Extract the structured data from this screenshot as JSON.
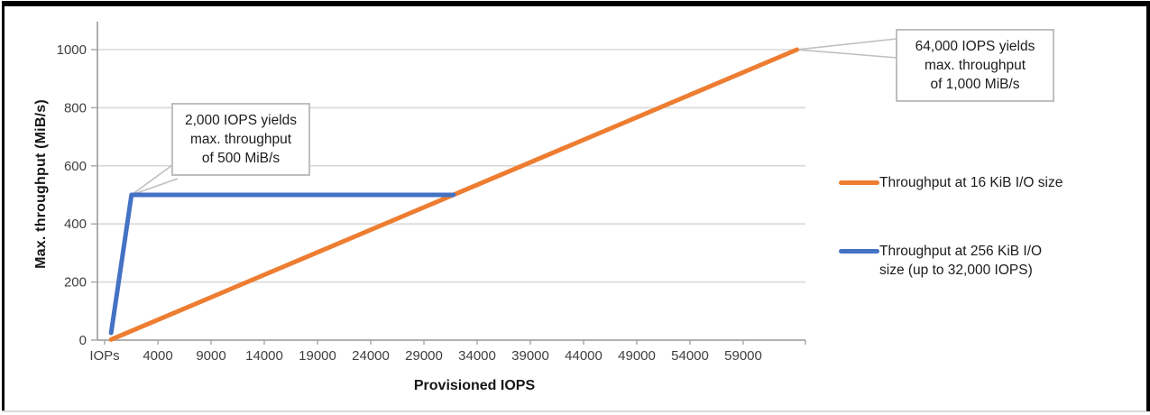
{
  "chart_data": {
    "type": "line",
    "title": "",
    "xlabel": "Provisioned IOPS",
    "ylabel": "Max. throughput (MiB/s)",
    "xlim": [
      0,
      64800
    ],
    "ylim": [
      0,
      1080
    ],
    "grid": "horizontal",
    "legend_position": "right",
    "x_ticks": [
      {
        "label": "IOPs",
        "value": 100
      },
      {
        "label": "4000",
        "value": 4000
      },
      {
        "label": "9000",
        "value": 9000
      },
      {
        "label": "14000",
        "value": 14000
      },
      {
        "label": "19000",
        "value": 19000
      },
      {
        "label": "24000",
        "value": 24000
      },
      {
        "label": "29000",
        "value": 29000
      },
      {
        "label": "34000",
        "value": 34000
      },
      {
        "label": "39000",
        "value": 39000
      },
      {
        "label": "44000",
        "value": 44000
      },
      {
        "label": "49000",
        "value": 49000
      },
      {
        "label": "54000",
        "value": 54000
      },
      {
        "label": "59000",
        "value": 59000
      }
    ],
    "y_ticks": [
      0,
      200,
      400,
      600,
      800,
      1000
    ],
    "series": [
      {
        "name": "Throughput at 16 KiB I/O size",
        "color": "#ED7D31",
        "points": [
          [
            100,
            2
          ],
          [
            64000,
            1000
          ]
        ]
      },
      {
        "name": "Throughput at 256 KiB I/O size (up to 32,000 IOPS)",
        "color": "#4472C4",
        "points": [
          [
            100,
            25
          ],
          [
            2000,
            500
          ],
          [
            32000,
            500
          ]
        ]
      }
    ],
    "annotations": [
      {
        "text_lines": [
          "2,000 IOPS yields",
          "max. throughput",
          "of 500 MiB/s"
        ],
        "target_x": 2000,
        "target_y": 500
      },
      {
        "text_lines": [
          "64,000 IOPS yields",
          "max. throughput",
          "of 1,000 MiB/s"
        ],
        "target_x": 64000,
        "target_y": 1000
      }
    ],
    "legend": [
      {
        "color": "#ED7D31",
        "label_lines": [
          "Throughput at 16 KiB I/O size"
        ]
      },
      {
        "color": "#4472C4",
        "label_lines": [
          "Throughput at 256 KiB I/O",
          "size (up to 32,000 IOPS)"
        ]
      }
    ]
  }
}
